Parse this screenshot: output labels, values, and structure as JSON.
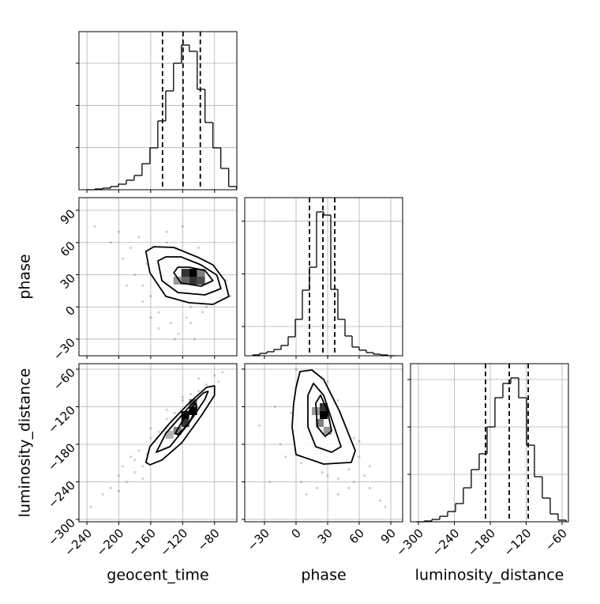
{
  "chart_data": [
    {
      "type": "histogram",
      "color": "#000000",
      "grid": true,
      "bins": [
        -240,
        -230.1,
        -220.2,
        -210.4,
        -200.5,
        -190.6,
        -180.7,
        -170.9,
        -161.0,
        -151.1,
        -141.2,
        -131.4,
        -121.5,
        -111.6,
        -101.7,
        -91.9,
        -82.0,
        -72.1,
        -62.2,
        -52.3
      ],
      "counts": [
        0,
        9,
        19,
        38,
        66,
        113,
        169,
        309,
        497,
        816,
        1172,
        1500,
        1716,
        1641,
        1191,
        797,
        497,
        253,
        38
      ],
      "quantiles": [
        -145.2,
        -119.5,
        -97.8
      ],
      "xlim": [
        -250,
        -52
      ],
      "xticks": [
        -240,
        -200,
        -160,
        -120,
        -80
      ],
      "ylim": [
        0,
        1875
      ],
      "yticks": [
        500,
        1000,
        1500
      ]
    },
    {
      "type": "scatter2d",
      "color": "#000000",
      "grid": true,
      "ylabel": "phase",
      "xlim": [
        -250,
        -52
      ],
      "xticks": [
        -240,
        -200,
        -160,
        -120,
        -80
      ],
      "ylim": [
        -45.5,
        101.8
      ],
      "yticks": [
        {
          "value": -30,
          "label": "−30"
        },
        0,
        30,
        60,
        90
      ],
      "points": {
        "x": [
          -230,
          -210,
          -200,
          -195,
          -185,
          -180,
          -175,
          -170,
          -165,
          -160,
          -155,
          -150,
          -145,
          -140,
          -135,
          -130,
          -125,
          -120,
          -115,
          -110,
          -105,
          -100,
          -95,
          -90,
          -85,
          -80,
          -75,
          -70,
          -65,
          -60,
          -190,
          -170,
          -150,
          -130,
          -110,
          -90,
          -140,
          -120,
          -100,
          -160
        ],
        "y": [
          75,
          60,
          70,
          45,
          55,
          30,
          65,
          20,
          40,
          10,
          50,
          -5,
          30,
          60,
          -15,
          15,
          -25,
          50,
          -10,
          0,
          -30,
          40,
          -5,
          35,
          10,
          20,
          5,
          15,
          25,
          10,
          20,
          5,
          -20,
          -30,
          -15,
          0,
          70,
          75,
          55,
          -10
        ]
      },
      "contours": [
        {
          "x": [
            -166,
            -161,
            -141,
            -112,
            -82,
            -62,
            -67,
            -82,
            -102,
            -131,
            -156
          ],
          "y": [
            51.7,
            31.8,
            9.8,
            3.9,
            2.4,
            9.8,
            24.5,
            39.2,
            46.6,
            55.4,
            56.1
          ]
        },
        {
          "x": [
            -151,
            -146,
            -126,
            -92,
            -72,
            -77,
            -97,
            -122,
            -141
          ],
          "y": [
            42.9,
            24.5,
            13.4,
            11.2,
            17.0,
            29.6,
            39.2,
            46.6,
            46.6
          ]
        },
        {
          "x": [
            -131,
            -122,
            -97,
            -82,
            -92,
            -112,
            -126
          ],
          "y": [
            31.8,
            22.3,
            19.3,
            24.5,
            34,
            37,
            37
          ]
        }
      ],
      "cells": {
        "x": [
          -116.7,
          -106.8,
          -106.8,
          -96.9,
          -126.5,
          -116.7,
          -96.9
        ],
        "y": [
          31.8,
          31.8,
          24.5,
          24.5,
          24.5,
          24.5,
          31.8
        ],
        "values": [
          0.8,
          1.0,
          0.8,
          0.7,
          0.4,
          0.6,
          0.5
        ]
      }
    },
    {
      "type": "histogram",
      "color": "#000000",
      "grid": true,
      "bins": [
        -41.25,
        -34.5,
        -27.75,
        -21,
        -14.25,
        -7.5,
        -0.75,
        6,
        12.75,
        19.5,
        26.25,
        33,
        39.75,
        46.5,
        53.25,
        60,
        66.75,
        73.5,
        80.25,
        87,
        93.75
      ],
      "counts": [
        14,
        41,
        68,
        108,
        176,
        324,
        622,
        1122,
        1514,
        2459,
        2405,
        1135,
        622,
        338,
        149,
        95,
        54,
        27,
        14,
        0
      ],
      "quantiles": [
        12.75,
        25.5,
        36.75
      ],
      "xlim": [
        -48.75,
        101.25
      ],
      "xticks": [
        -30,
        0,
        30,
        60,
        90
      ],
      "ylim": [
        0,
        2703
      ],
      "yticks": [
        500,
        1400,
        2300
      ]
    },
    {
      "type": "scatter2d",
      "color": "#000000",
      "grid": true,
      "xlabel": "geocent_time",
      "ylabel": "luminosity_distance",
      "xlim": [
        -250,
        -52
      ],
      "xticks": [
        {
          "value": -240,
          "label": "−240"
        },
        {
          "value": -200,
          "label": "−200"
        },
        {
          "value": -160,
          "label": "−160"
        },
        {
          "value": -120,
          "label": "−120"
        },
        {
          "value": -80,
          "label": "−80"
        }
      ],
      "ylim": [
        -303.8,
        -51.2
      ],
      "yticks": [
        {
          "value": -300,
          "label": "−300"
        },
        {
          "value": -240,
          "label": "−240"
        },
        {
          "value": -180,
          "label": "−180"
        },
        {
          "value": -120,
          "label": "−120"
        },
        {
          "value": -60,
          "label": "−60"
        }
      ],
      "points": {
        "x": [
          -235,
          -220,
          -210,
          -200,
          -195,
          -190,
          -185,
          -180,
          -175,
          -170,
          -165,
          -160,
          -155,
          -150,
          -145,
          -140,
          -135,
          -130,
          -125,
          -120,
          -115,
          -110,
          -105,
          -100,
          -95,
          -90,
          -85,
          -80,
          -75,
          -70,
          -200,
          -180,
          -160,
          -140,
          -120,
          -100,
          -170,
          -150,
          -130,
          -110
        ],
        "y": [
          -280,
          -260,
          -250,
          -230,
          -215,
          -240,
          -200,
          -225,
          -190,
          -215,
          -195,
          -170,
          -200,
          -160,
          -185,
          -140,
          -175,
          -130,
          -160,
          -110,
          -145,
          -100,
          -130,
          -95,
          -115,
          -85,
          -100,
          -70,
          -80,
          -65,
          -255,
          -205,
          -155,
          -125,
          -105,
          -75,
          -235,
          -180,
          -150,
          -125
        ]
      },
      "contours": [
        {
          "x": [
            -166,
            -161,
            -136,
            -112,
            -90,
            -80,
            -80,
            -96,
            -121,
            -146,
            -161
          ],
          "y": [
            -209,
            -183.8,
            -145.9,
            -114.3,
            -89.1,
            -86.6,
            -101.7,
            -133.3,
            -177.5,
            -205.2,
            -212.8
          ]
        },
        {
          "x": [
            -153,
            -141,
            -112,
            -94,
            -88,
            -92,
            -112,
            -136
          ],
          "y": [
            -192.7,
            -162.3,
            -120.6,
            -97.9,
            -95.4,
            -108,
            -145.9,
            -183.8
          ]
        },
        {
          "x": [
            -129,
            -116,
            -104,
            -102,
            -112,
            -126
          ],
          "y": [
            -162.3,
            -133.3,
            -114.3,
            -120.6,
            -145.9,
            -164.8
          ]
        }
      ],
      "cells": {
        "x": [
          -116.7,
          -106.8,
          -116.7,
          -126.5,
          -136.4,
          -106.8
        ],
        "y": [
          -133.3,
          -127,
          -145.9,
          -158.5,
          -164.8,
          -114.3
        ],
        "values": [
          1.0,
          1.0,
          0.8,
          0.5,
          0.3,
          0.6
        ]
      }
    },
    {
      "type": "scatter2d",
      "color": "#000000",
      "grid": true,
      "xlabel": "phase",
      "xlim": [
        -48.75,
        101.25
      ],
      "xticks": [
        {
          "value": -30,
          "label": "−30"
        },
        0,
        30,
        60,
        90
      ],
      "ylim": [
        -303.8,
        -51.2
      ],
      "yticks": [
        -300,
        -240,
        -180,
        -120,
        -60
      ],
      "points": {
        "x": [
          -35,
          -20,
          -10,
          0,
          5,
          10,
          15,
          20,
          25,
          30,
          35,
          40,
          45,
          50,
          55,
          60,
          65,
          70,
          80,
          85,
          -5,
          5,
          10,
          20,
          30,
          40,
          50,
          60,
          -15,
          0,
          15,
          25,
          35,
          45,
          10,
          40,
          70,
          -25,
          55,
          20
        ],
        "y": [
          -150,
          -120,
          -200,
          -90,
          -240,
          -160,
          -70,
          -250,
          -100,
          -230,
          -180,
          -260,
          -150,
          -220,
          -240,
          -200,
          -230,
          -250,
          -270,
          -280,
          -130,
          -210,
          -115,
          -190,
          -80,
          -110,
          -250,
          -175,
          -180,
          -60,
          -140,
          -225,
          -150,
          -200,
          -260,
          -235,
          -215,
          -240,
          -170,
          -140
        ]
      },
      "contours": [
        {
          "x": [
            0,
            3.75,
            15,
            26.25,
            41.25,
            56.25,
            52.5,
            26.25,
            0,
            -3.75,
            -2.25
          ],
          "y": [
            -89.1,
            -63.8,
            -61.3,
            -76.5,
            -127,
            -190.1,
            -209,
            -211.6,
            -196.4,
            -152.2,
            -114.3
          ]
        },
        {
          "x": [
            11.25,
            16.5,
            26.25,
            33.75,
            42.75,
            33.75,
            18.75,
            11.25
          ],
          "y": [
            -101.7,
            -82.7,
            -101.7,
            -139.6,
            -183.8,
            -192.7,
            -183.8,
            -152.2
          ]
        },
        {
          "x": [
            18.75,
            23.25,
            30,
            33.75,
            27.75,
            20.25
          ],
          "y": [
            -114.3,
            -101.7,
            -127,
            -158.5,
            -167.4,
            -152.2
          ]
        }
      ],
      "cells": {
        "x": [
          26.25,
          26.25,
          22.5,
          30,
          18.75
        ],
        "y": [
          -133.3,
          -120.6,
          -145.9,
          -158.5,
          -127
        ],
        "values": [
          1.0,
          0.8,
          0.5,
          0.4,
          0.4
        ]
      }
    },
    {
      "type": "histogram",
      "color": "#000000",
      "grid": true,
      "xlabel": "luminosity_distance",
      "bins": [
        -304,
        -290.8,
        -277.6,
        -264.4,
        -251.2,
        -238.0,
        -224.9,
        -211.7,
        -198.5,
        -185.3,
        -172.1,
        -158.9,
        -145.7,
        -132.5,
        -119.3,
        -106.2,
        -93.0,
        -79.8,
        -66.6,
        -53.4
      ],
      "counts": [
        0,
        8,
        25,
        58,
        108,
        192,
        358,
        550,
        717,
        1000,
        1308,
        1458,
        1517,
        1308,
        808,
        475,
        250,
        83,
        17
      ],
      "quantiles": [
        -187.9,
        -148.3,
        -116.6
      ],
      "xlim": [
        -313.2,
        -49.4
      ],
      "xticks": [
        {
          "value": -300,
          "label": "−300"
        },
        {
          "value": -240,
          "label": "−240"
        },
        {
          "value": -180,
          "label": "−180"
        },
        {
          "value": -120,
          "label": "−120"
        },
        {
          "value": -60,
          "label": "−60"
        }
      ],
      "ylim": [
        0,
        1667
      ],
      "yticks": [
        500,
        1000,
        1500
      ]
    }
  ]
}
